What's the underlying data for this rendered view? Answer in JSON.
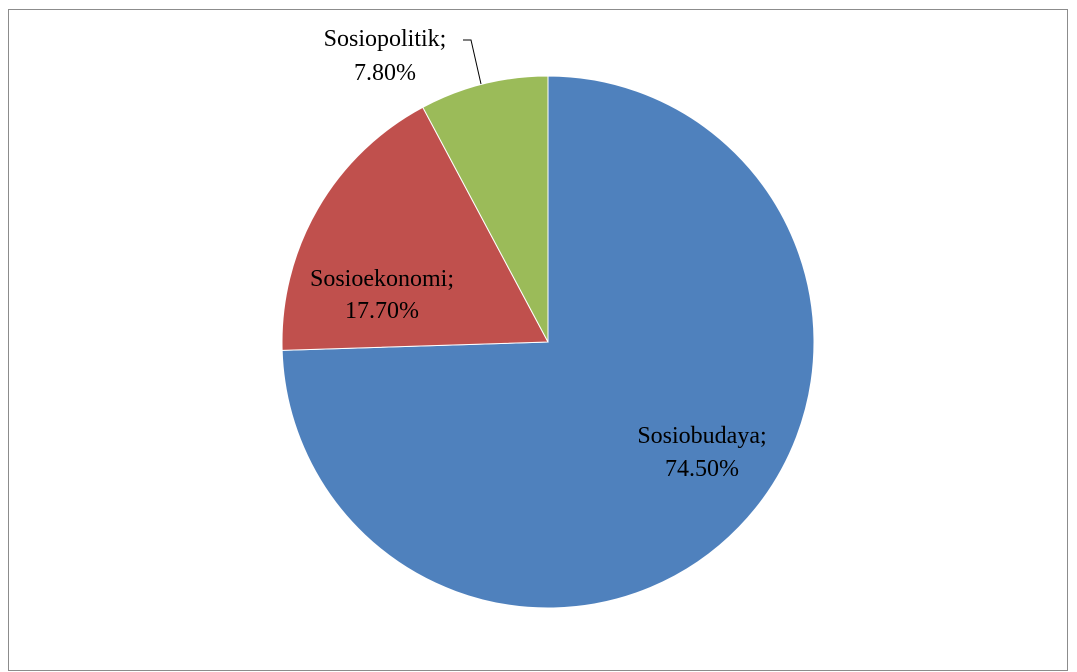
{
  "chart_data": {
    "type": "pie",
    "title": "",
    "categories": [
      "Sosiobudaya",
      "Sosioekonomi",
      "Sosiopolitik"
    ],
    "values": [
      74.5,
      17.7,
      7.8
    ],
    "labels": [
      {
        "name": "Sosiobudaya;",
        "value": "74.50%"
      },
      {
        "name": "Sosioekonomi;",
        "value": "17.70%"
      },
      {
        "name": "Sosiopolitik;",
        "value": "7.80%"
      }
    ],
    "colors": [
      "#4f81bd",
      "#c0504d",
      "#9bbb59"
    ],
    "start_angle_deg": 0,
    "direction": "clockwise",
    "legend": "none"
  }
}
